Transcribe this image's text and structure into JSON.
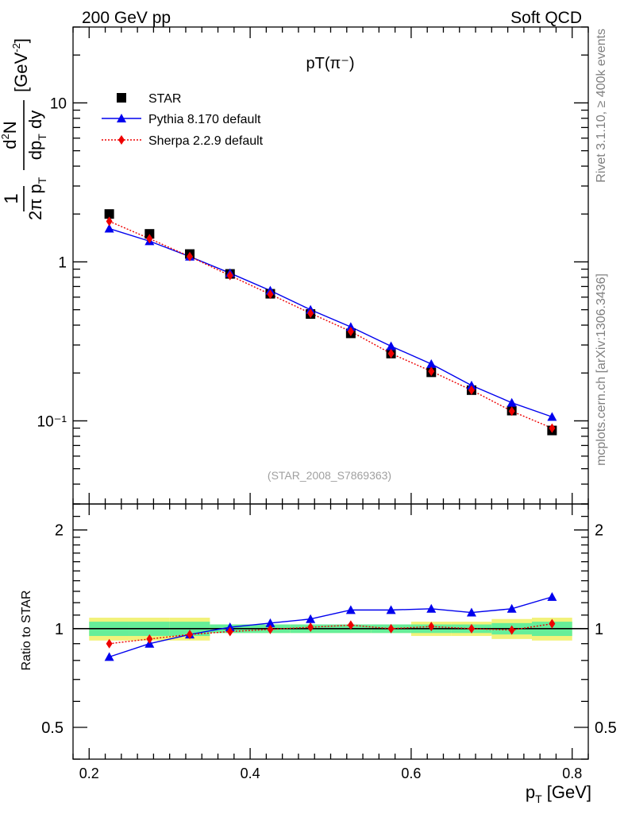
{
  "header": {
    "left": "200 GeV pp",
    "right": "Soft QCD"
  },
  "side": {
    "rivet": "Rivet 3.1.10, ≥ 400k events",
    "mcplots": "mcplots.cern.ch [arXiv:1306.3436]"
  },
  "main": {
    "title": "pT(π⁻)",
    "watermark": "(STAR_2008_S7869363)",
    "ylabel": "1/(2π pT) d²N/(dpT dy) [GeV⁻²]",
    "ytick_labels": [
      "10",
      "1",
      "10⁻¹"
    ]
  },
  "ratio": {
    "ylabel": "Ratio to STAR",
    "ytick_labels": [
      "2",
      "1",
      "0.5"
    ]
  },
  "xaxis": {
    "label": "pT [GeV]",
    "tick_labels": [
      "0.2",
      "0.4",
      "0.6",
      "0.8"
    ]
  },
  "legend": {
    "entries": [
      "STAR",
      "Pythia 8.170 default",
      "Sherpa 2.2.9 default"
    ]
  },
  "colors": {
    "data": "#000000",
    "pythia": "#0000ee",
    "sherpa": "#ee0000",
    "band_inner": "#66ee99",
    "band_outer": "#f2f27a"
  },
  "chart_data": [
    {
      "type": "scatter",
      "panel": "main",
      "x": [
        0.225,
        0.275,
        0.325,
        0.375,
        0.425,
        0.475,
        0.525,
        0.575,
        0.625,
        0.675,
        0.725,
        0.775
      ],
      "xlim": [
        0.18,
        0.82
      ],
      "ylim": [
        0.03,
        30
      ],
      "yscale": "log",
      "series": [
        {
          "name": "STAR",
          "marker": "square",
          "values": [
            2.0,
            1.5,
            1.12,
            0.84,
            0.63,
            0.47,
            0.355,
            0.265,
            0.202,
            0.156,
            0.116,
            0.087
          ]
        },
        {
          "name": "Pythia 8.170 default",
          "marker": "triangle",
          "values": [
            1.62,
            1.35,
            1.08,
            0.85,
            0.66,
            0.5,
            0.39,
            0.295,
            0.228,
            0.167,
            0.13,
            0.106
          ]
        },
        {
          "name": "Sherpa 2.2.9 default",
          "marker": "diamond",
          "values": [
            1.8,
            1.4,
            1.08,
            0.82,
            0.625,
            0.475,
            0.365,
            0.265,
            0.205,
            0.156,
            0.115,
            0.09
          ]
        }
      ]
    },
    {
      "type": "line",
      "panel": "ratio",
      "x": [
        0.225,
        0.275,
        0.325,
        0.375,
        0.425,
        0.475,
        0.525,
        0.575,
        0.625,
        0.675,
        0.725,
        0.775
      ],
      "xlim": [
        0.18,
        0.82
      ],
      "ylim": [
        0.4,
        2.4
      ],
      "yscale": "log",
      "series": [
        {
          "name": "Pythia 8.170 default",
          "values": [
            0.82,
            0.9,
            0.96,
            1.01,
            1.04,
            1.07,
            1.14,
            1.14,
            1.15,
            1.12,
            1.15,
            1.25
          ]
        },
        {
          "name": "Sherpa 2.2.9 default",
          "values": [
            0.9,
            0.93,
            0.96,
            0.98,
            0.995,
            1.01,
            1.025,
            1.0,
            1.015,
            1.0,
            0.99,
            1.035
          ]
        }
      ],
      "band_inner": [
        0.05,
        0.05,
        0.05,
        0.03,
        0.03,
        0.03,
        0.03,
        0.03,
        0.03,
        0.03,
        0.04,
        0.05
      ],
      "band_outer": [
        0.08,
        0.08,
        0.08,
        0.03,
        0.03,
        0.03,
        0.03,
        0.03,
        0.05,
        0.05,
        0.07,
        0.08
      ]
    }
  ]
}
